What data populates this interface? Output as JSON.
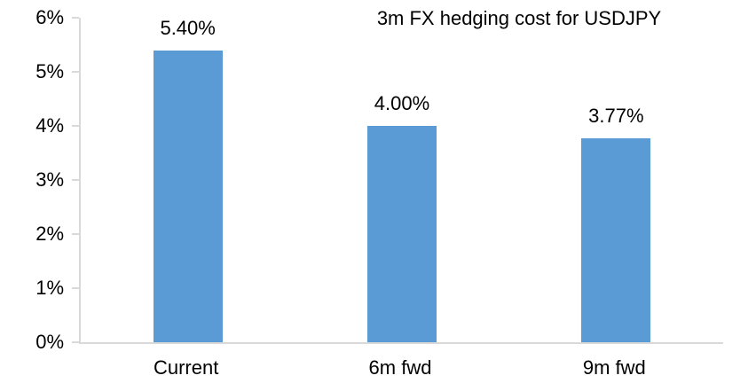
{
  "chart_data": {
    "type": "bar",
    "title": "3m FX hedging cost for USDJPY",
    "categories": [
      "Current",
      "6m fwd",
      "9m fwd"
    ],
    "values": [
      5.4,
      4.0,
      3.77
    ],
    "data_labels": [
      "5.40%",
      "4.00%",
      "3.77%"
    ],
    "xlabel": "",
    "ylabel": "",
    "ylim": [
      0,
      6
    ],
    "yticks": [
      "0%",
      "1%",
      "2%",
      "3%",
      "4%",
      "5%",
      "6%"
    ],
    "grid": false,
    "legend_position": "none",
    "colors": {
      "bar": "#5B9BD5",
      "axis": "#D9D9D9",
      "text": "#000000",
      "background": "#FFFFFF"
    }
  }
}
